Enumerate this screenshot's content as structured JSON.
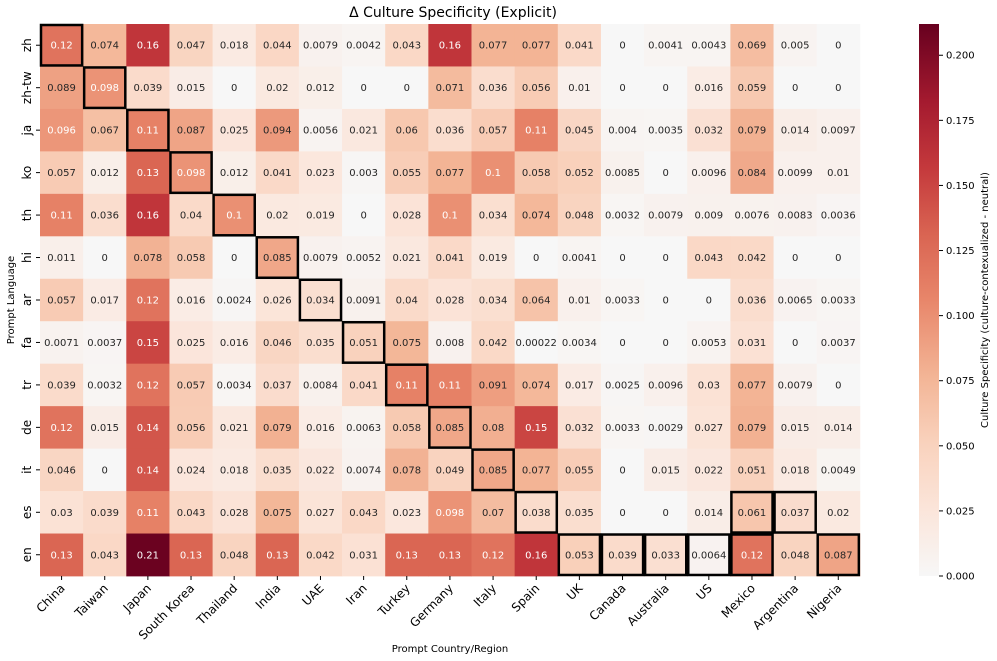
{
  "chart_data": {
    "type": "heatmap",
    "title": "Δ Culture Specificity (Explicit)",
    "xlabel": "Prompt Country/Region",
    "ylabel": "Prompt Language",
    "colorbar_label": "Culture Specificity (culture-contexualized - neutral)",
    "colorbar_range": [
      0.0,
      0.212
    ],
    "colorbar_ticks": [
      "0.000",
      "0.025",
      "0.050",
      "0.075",
      "0.100",
      "0.125",
      "0.150",
      "0.175",
      "0.200"
    ],
    "colormap": "Reds (light to dark red)",
    "x_categories": [
      "China",
      "Taiwan",
      "Japan",
      "South Korea",
      "Thailand",
      "India",
      "UAE",
      "Iran",
      "Turkey",
      "Germany",
      "Italy",
      "Spain",
      "UK",
      "Canada",
      "Australia",
      "US",
      "Mexico",
      "Argentina",
      "Nigeria"
    ],
    "y_categories": [
      "zh",
      "zh-tw",
      "ja",
      "ko",
      "th",
      "hi",
      "ar",
      "fa",
      "tr",
      "de",
      "it",
      "es",
      "en"
    ],
    "values": [
      [
        "0.12",
        "0.074",
        "0.16",
        "0.047",
        "0.018",
        "0.044",
        "0.0079",
        "0.0042",
        "0.043",
        "0.16",
        "0.077",
        "0.077",
        "0.041",
        "0",
        "0.0041",
        "0.0043",
        "0.069",
        "0.005",
        "0"
      ],
      [
        "0.089",
        "0.098",
        "0.039",
        "0.015",
        "0",
        "0.02",
        "0.012",
        "0",
        "0",
        "0.071",
        "0.036",
        "0.056",
        "0.01",
        "0",
        "0",
        "0.016",
        "0.059",
        "0",
        "0"
      ],
      [
        "0.096",
        "0.067",
        "0.11",
        "0.087",
        "0.025",
        "0.094",
        "0.0056",
        "0.021",
        "0.06",
        "0.036",
        "0.057",
        "0.11",
        "0.045",
        "0.004",
        "0.0035",
        "0.032",
        "0.079",
        "0.014",
        "0.0097"
      ],
      [
        "0.057",
        "0.012",
        "0.13",
        "0.098",
        "0.012",
        "0.041",
        "0.023",
        "0.003",
        "0.055",
        "0.077",
        "0.1",
        "0.058",
        "0.052",
        "0.0085",
        "0",
        "0.0096",
        "0.084",
        "0.0099",
        "0.01"
      ],
      [
        "0.11",
        "0.036",
        "0.16",
        "0.04",
        "0.1",
        "0.02",
        "0.019",
        "0",
        "0.028",
        "0.1",
        "0.034",
        "0.074",
        "0.048",
        "0.0032",
        "0.0079",
        "0.009",
        "0.0076",
        "0.0083",
        "0.0036"
      ],
      [
        "0.011",
        "0",
        "0.078",
        "0.058",
        "0",
        "0.085",
        "0.0079",
        "0.0052",
        "0.021",
        "0.041",
        "0.019",
        "0",
        "0.0041",
        "0",
        "0",
        "0.043",
        "0.042",
        "0",
        "0"
      ],
      [
        "0.057",
        "0.017",
        "0.12",
        "0.016",
        "0.0024",
        "0.026",
        "0.034",
        "0.0091",
        "0.04",
        "0.028",
        "0.034",
        "0.064",
        "0.01",
        "0.0033",
        "0",
        "0",
        "0.036",
        "0.0065",
        "0.0033"
      ],
      [
        "0.0071",
        "0.0037",
        "0.15",
        "0.025",
        "0.016",
        "0.046",
        "0.035",
        "0.051",
        "0.075",
        "0.008",
        "0.042",
        "0.00022",
        "0.0034",
        "0",
        "0",
        "0.0053",
        "0.031",
        "0",
        "0.0037"
      ],
      [
        "0.039",
        "0.0032",
        "0.12",
        "0.057",
        "0.0034",
        "0.037",
        "0.0084",
        "0.041",
        "0.11",
        "0.11",
        "0.091",
        "0.074",
        "0.017",
        "0.0025",
        "0.0096",
        "0.03",
        "0.077",
        "0.0079",
        "0"
      ],
      [
        "0.12",
        "0.015",
        "0.14",
        "0.056",
        "0.021",
        "0.079",
        "0.016",
        "0.0063",
        "0.058",
        "0.085",
        "0.08",
        "0.15",
        "0.032",
        "0.0033",
        "0.0029",
        "0.027",
        "0.079",
        "0.015",
        "0.014"
      ],
      [
        "0.046",
        "0",
        "0.14",
        "0.024",
        "0.018",
        "0.035",
        "0.022",
        "0.0074",
        "0.078",
        "0.049",
        "0.085",
        "0.077",
        "0.055",
        "0",
        "0.015",
        "0.022",
        "0.051",
        "0.018",
        "0.0049"
      ],
      [
        "0.03",
        "0.039",
        "0.11",
        "0.043",
        "0.028",
        "0.075",
        "0.027",
        "0.043",
        "0.023",
        "0.098",
        "0.07",
        "0.038",
        "0.035",
        "0",
        "0",
        "0.014",
        "0.061",
        "0.037",
        "0.02"
      ],
      [
        "0.13",
        "0.043",
        "0.21",
        "0.13",
        "0.048",
        "0.13",
        "0.042",
        "0.031",
        "0.13",
        "0.13",
        "0.12",
        "0.16",
        "0.053",
        "0.039",
        "0.033",
        "0.0064",
        "0.12",
        "0.048",
        "0.087"
      ]
    ],
    "highlighted_cells": [
      [
        0,
        0
      ],
      [
        1,
        1
      ],
      [
        2,
        2
      ],
      [
        3,
        3
      ],
      [
        4,
        4
      ],
      [
        5,
        5
      ],
      [
        6,
        6
      ],
      [
        7,
        7
      ],
      [
        8,
        8
      ],
      [
        9,
        9
      ],
      [
        10,
        10
      ],
      [
        11,
        11
      ],
      [
        11,
        16
      ],
      [
        11,
        17
      ],
      [
        12,
        12
      ],
      [
        12,
        13
      ],
      [
        12,
        14
      ],
      [
        12,
        15
      ],
      [
        12,
        16
      ],
      [
        12,
        18
      ]
    ]
  }
}
